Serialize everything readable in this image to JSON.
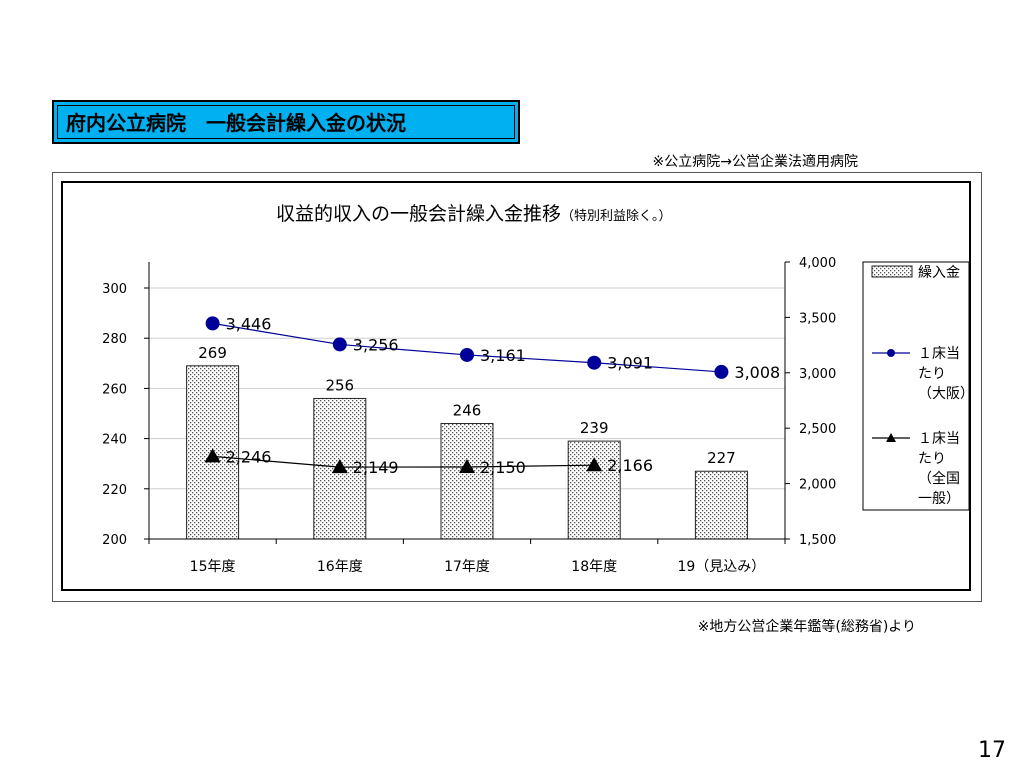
{
  "slide": {
    "title": "府内公立病院　一般会計繰入金の状況",
    "note_top": "※公立病院→公営企業法適用病院",
    "note_bottom": "※地方公営企業年鑑等(総務省)より",
    "page_number": "17"
  },
  "chart_data": {
    "type": "bar",
    "title": "収益的収入の一般会計繰入金推移",
    "title_suffix": "（特別利益除く。）",
    "categories": [
      "15年度",
      "16年度",
      "17年度",
      "18年度",
      "19（見込み）"
    ],
    "series": [
      {
        "name": "繰入金",
        "type": "bar",
        "axis": "left",
        "values": [
          269,
          256,
          246,
          239,
          227
        ],
        "labels": [
          "269",
          "256",
          "246",
          "239",
          "227"
        ],
        "color": "#d9d9d9"
      },
      {
        "name": "１床当たり（大阪）",
        "type": "line",
        "axis": "right",
        "values": [
          3446,
          3256,
          3161,
          3091,
          3008
        ],
        "labels": [
          "3,446",
          "3,256",
          "3,161",
          "3,091",
          "3,008"
        ],
        "marker": "circle",
        "color": "#000099"
      },
      {
        "name": "１床当たり（全国一般）",
        "type": "line",
        "axis": "right",
        "values": [
          2246,
          2149,
          2150,
          2166,
          null
        ],
        "labels": [
          "2,246",
          "2,149",
          "2,150",
          "2,166",
          ""
        ],
        "marker": "triangle",
        "color": "#000000"
      }
    ],
    "y_left": {
      "min": 200,
      "max": 300,
      "ticks": [
        "200",
        "220",
        "240",
        "260",
        "280",
        "300"
      ]
    },
    "y_right": {
      "min": 1500,
      "max": 4000,
      "ticks": [
        "1,500",
        "2,000",
        "2,500",
        "3,000",
        "3,500",
        "4,000"
      ]
    },
    "legend": {
      "position": "right",
      "items": [
        {
          "lines": [
            "繰入金"
          ]
        },
        {
          "lines": [
            "１床当",
            "たり",
            "（大阪）"
          ]
        },
        {
          "lines": [
            "１床当",
            "たり",
            "（全国",
            "一般）"
          ]
        }
      ]
    },
    "grid": true
  }
}
